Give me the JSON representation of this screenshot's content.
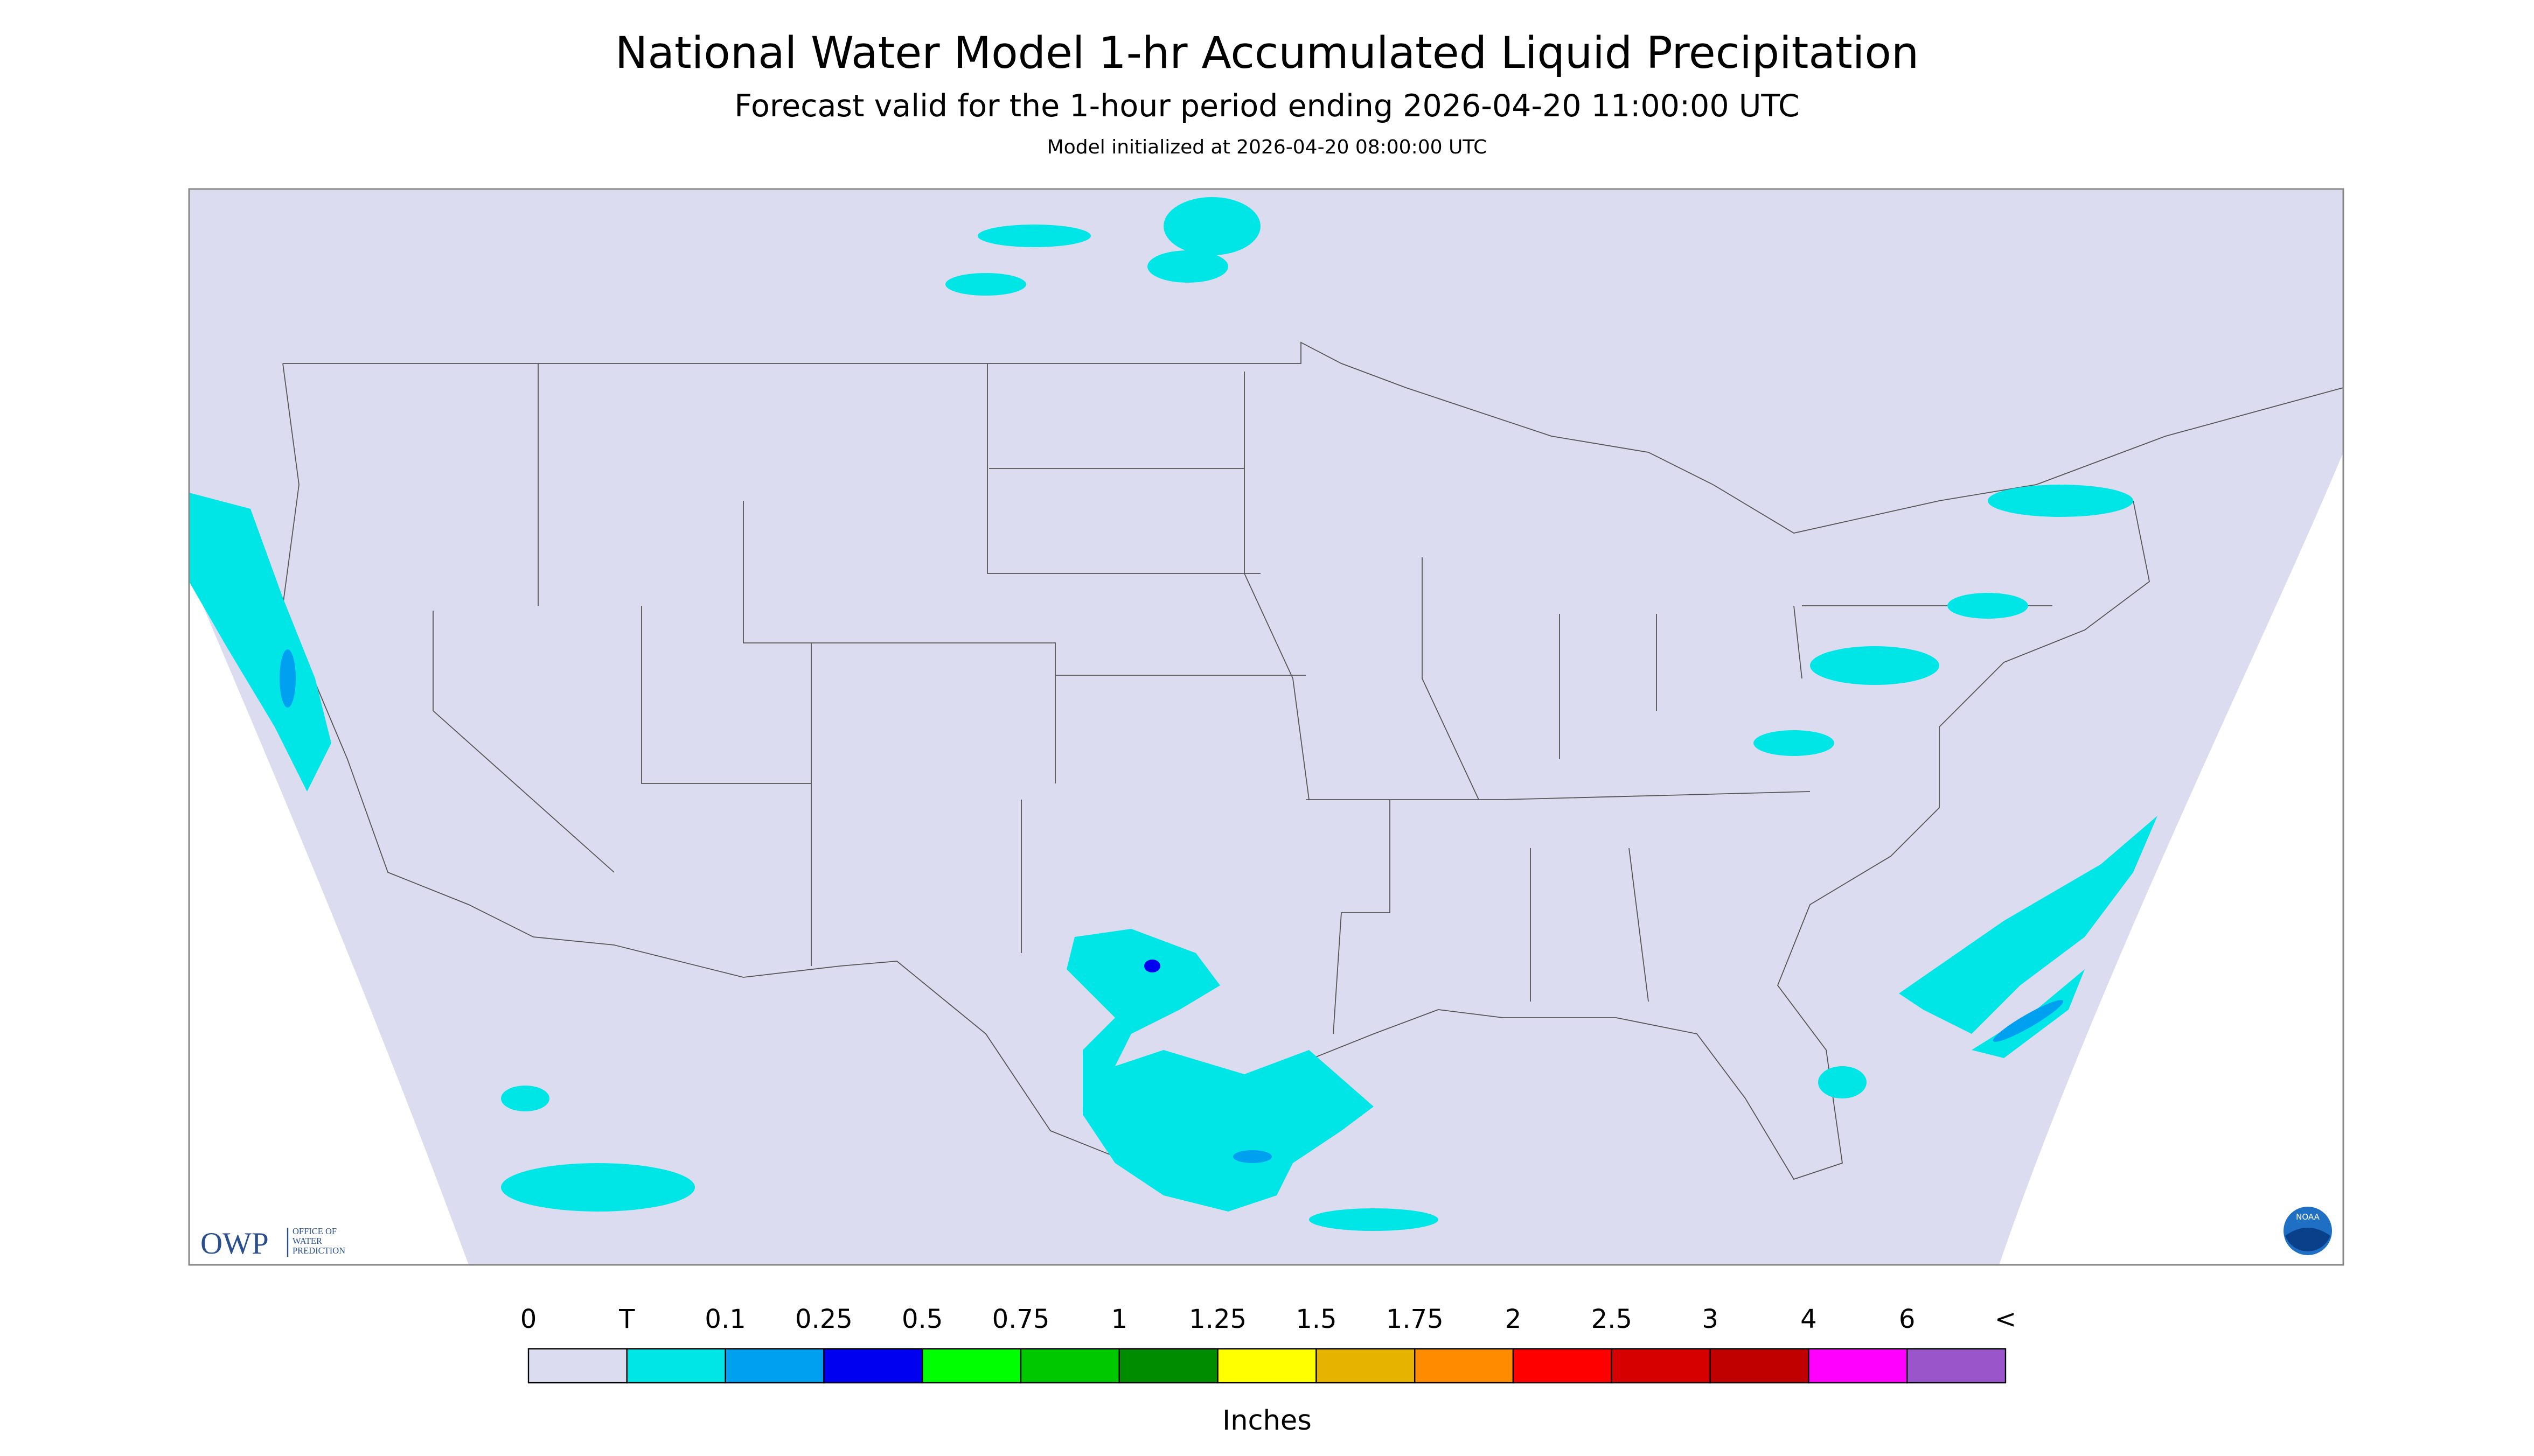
{
  "header": {
    "title": "National Water Model 1-hr Accumulated Liquid Precipitation",
    "subtitle": "Forecast valid for the 1-hour period ending 2026-04-20 11:00:00 UTC",
    "init": "Model initialized at 2026-04-20 08:00:00 UTC"
  },
  "legend": {
    "labels": [
      "0",
      "T",
      "0.1",
      "0.25",
      "0.5",
      "0.75",
      "1",
      "1.25",
      "1.5",
      "1.75",
      "2",
      "2.5",
      "3",
      "4",
      "6",
      "<"
    ],
    "colors": [
      "#dcdcf0",
      "#00e6e6",
      "#00a0f0",
      "#0000f0",
      "#00ff00",
      "#00c800",
      "#008c00",
      "#ffff00",
      "#e6b400",
      "#ff8c00",
      "#ff0000",
      "#d70000",
      "#c00000",
      "#ff00ff",
      "#9955c9"
    ],
    "unit": "Inches"
  },
  "logo": {
    "name": "OWP",
    "lines": [
      "OFFICE OF",
      "WATER",
      "PREDICTION"
    ],
    "agency": "NOAA"
  }
}
